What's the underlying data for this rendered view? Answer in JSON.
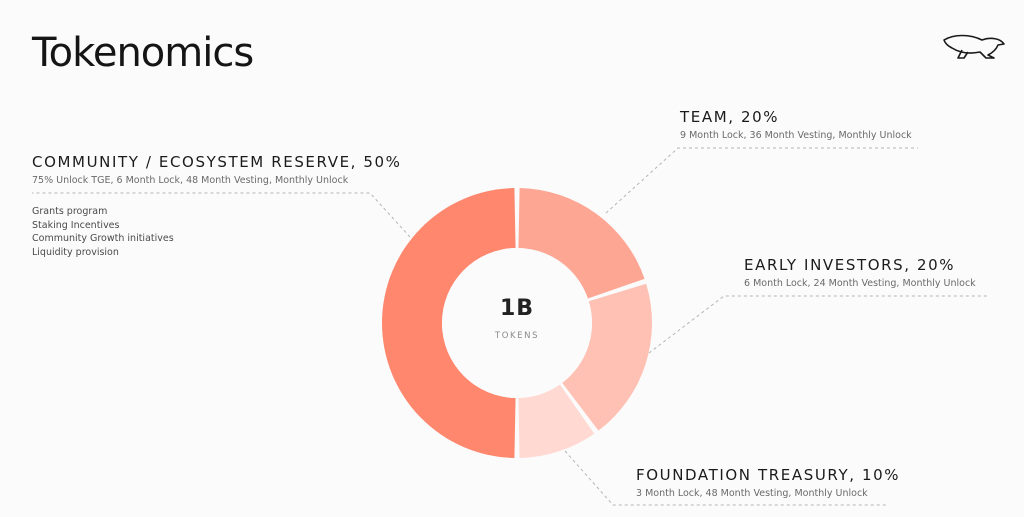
{
  "page": {
    "title": "Tokenomics"
  },
  "logo": {
    "icon": "panther-icon"
  },
  "chart_data": {
    "type": "pie",
    "center": {
      "value": "1B",
      "unit": "TOKENS"
    },
    "slices": [
      {
        "label": "TEAM, 20%",
        "value": 20,
        "color": "#fea694",
        "detail": "9 Month Lock, 36 Month Vesting, Monthly Unlock"
      },
      {
        "label": "EARLY INVESTORS, 20%",
        "value": 20,
        "color": "#ffc1b4",
        "detail": "6 Month Lock, 24 Month Vesting, Monthly Unlock"
      },
      {
        "label": "FOUNDATION TREASURY, 10%",
        "value": 10,
        "color": "#ffd9d2",
        "detail": "3 Month Lock, 48 Month Vesting, Monthly Unlock"
      },
      {
        "label": "COMMUNITY / ECOSYSTEM RESERVE, 50%",
        "value": 50,
        "color": "#fe876e",
        "detail": "75% Unlock TGE, 6 Month Lock, 48 Month Vesting, Monthly Unlock",
        "bullets": [
          "Grants program",
          "Staking Incentives",
          "Community Growth initiatives",
          "Liquidity provision"
        ]
      }
    ]
  }
}
